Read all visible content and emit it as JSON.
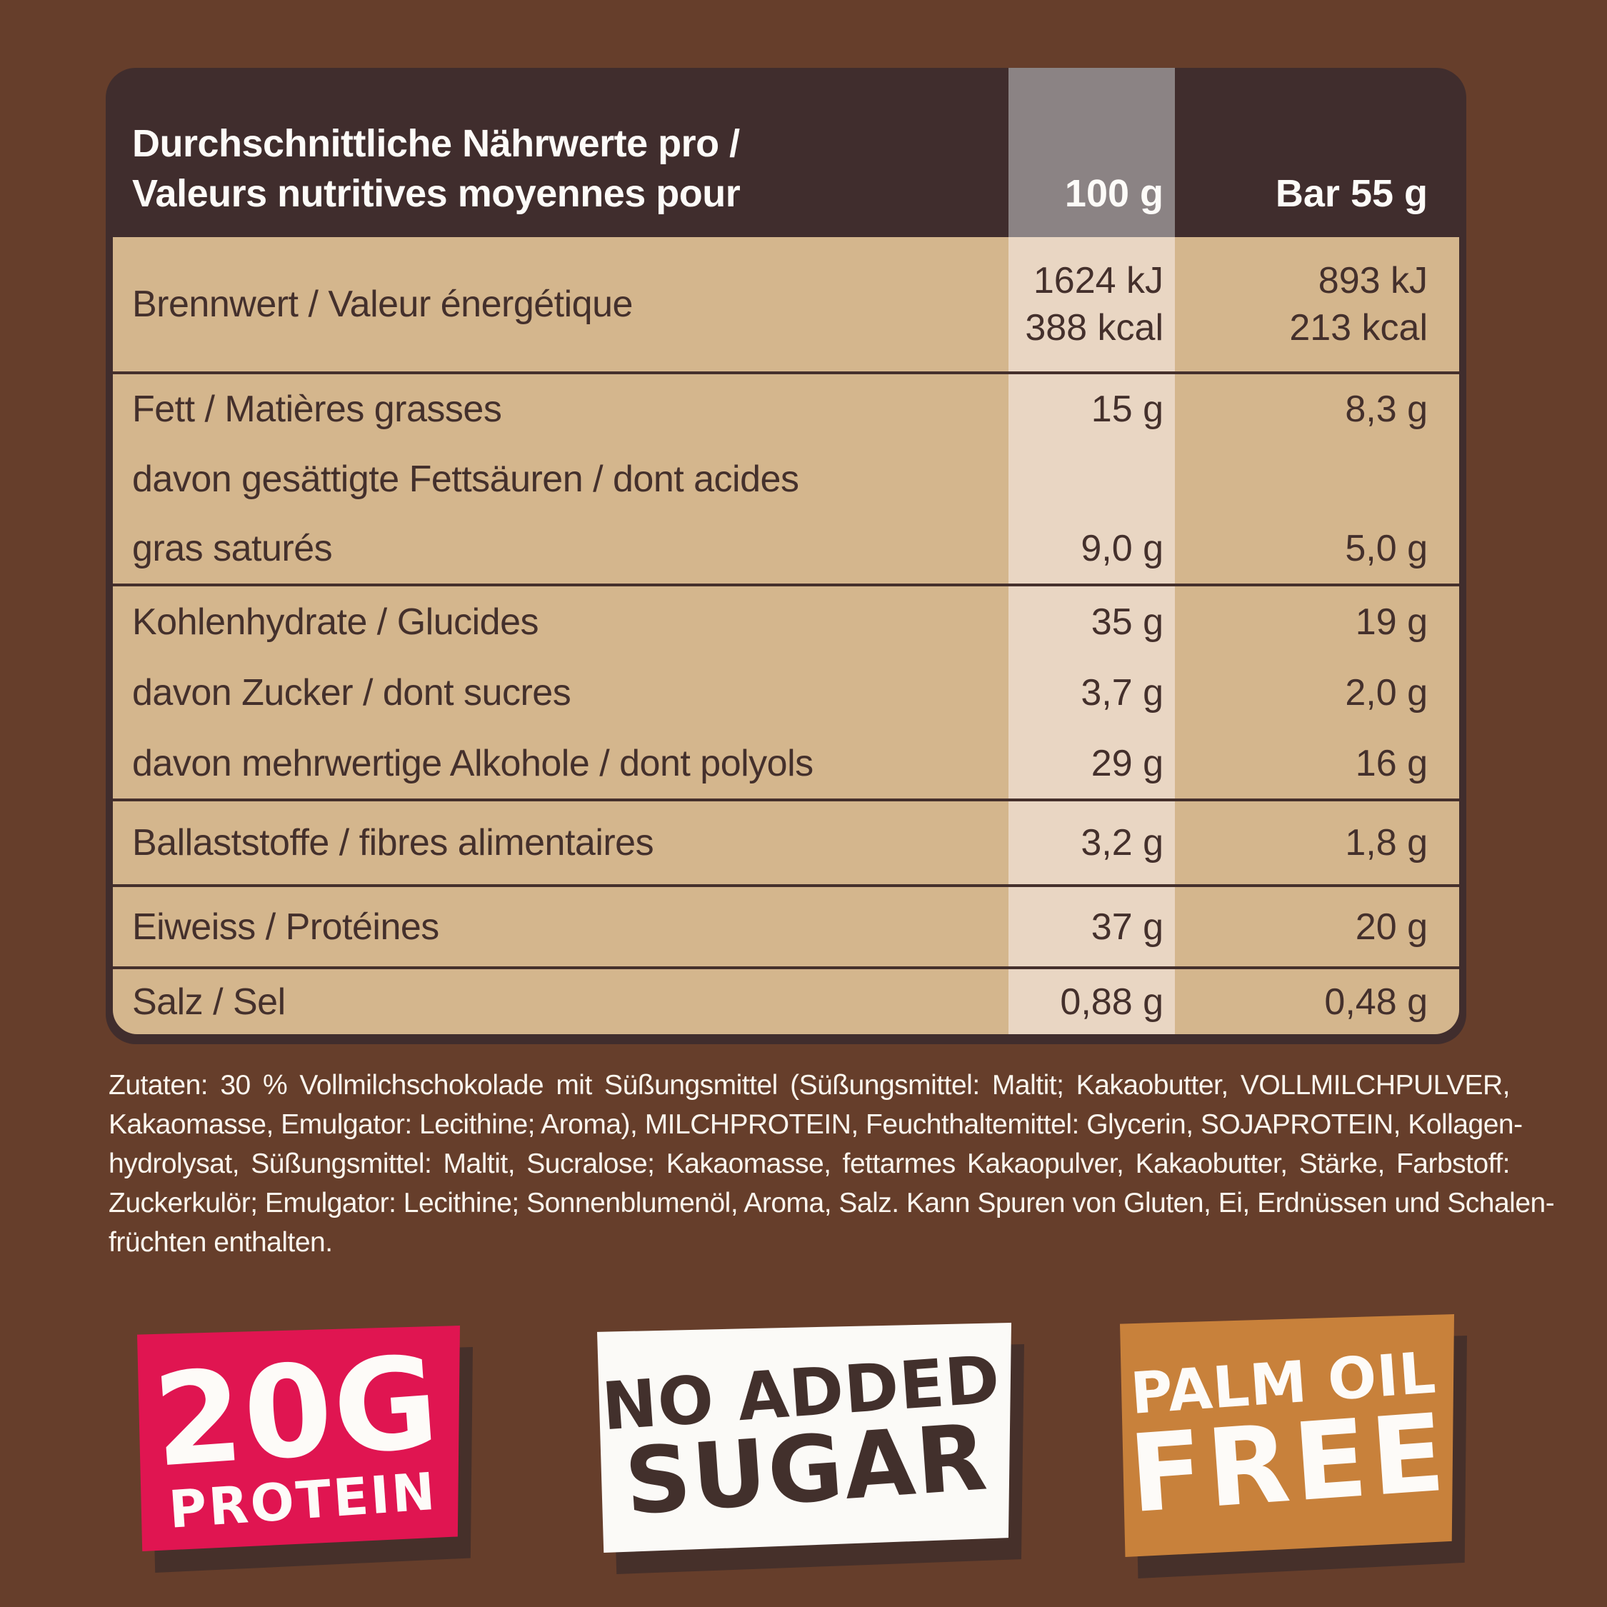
{
  "colors": {
    "background": "#663e2b",
    "panel_frame": "#402d2d",
    "row_tan": "#d4b68d",
    "col_100g_highlight": "#e9d6c3",
    "col_100g_header_gray": "#8b8384",
    "table_text": "#44302c",
    "white_text": "#fdfbf8",
    "badge_protein_bg": "#e01551",
    "badge_sugar_bg": "#fbfaf7",
    "badge_palm_bg": "#c8813b",
    "badge_shadow": "#46302a"
  },
  "table": {
    "header": {
      "title_de": "Durchschnittliche Nährwerte pro /",
      "title_fr": "Valeurs nutritives moyennes pour",
      "col_100g": "100 g",
      "col_bar": "Bar 55 g"
    },
    "rows": {
      "energy": {
        "label": "Brennwert / Valeur énergétique",
        "v100_kj": "1624 kJ",
        "v100_kcal": "388 kcal",
        "vbar_kj": "893 kJ",
        "vbar_kcal": "213 kcal"
      },
      "fat": {
        "l1": "Fett / Matières grasses",
        "v1_100": "15 g",
        "v1_bar": "8,3 g",
        "l2": "davon gesättigte Fettsäuren / dont acides",
        "l3": "gras saturés",
        "v3_100": "9,0 g",
        "v3_bar": "5,0 g"
      },
      "carbs": {
        "l1": "Kohlenhydrate / Glucides",
        "v1_100": "35 g",
        "v1_bar": "19 g",
        "l2": "davon Zucker / dont sucres",
        "v2_100": "3,7 g",
        "v2_bar": "2,0 g",
        "l3": "davon mehrwertige Alkohole / dont polyols",
        "v3_100": "29 g",
        "v3_bar": "16 g"
      },
      "fibre": {
        "label": "Ballaststoffe / fibres alimentaires",
        "v100": "3,2 g",
        "vbar": "1,8 g"
      },
      "protein": {
        "label": "Eiweiss / Protéines",
        "v100": "37 g",
        "vbar": "20 g"
      },
      "salt": {
        "label": "Salz / Sel",
        "v100": "0,88 g",
        "vbar": "0,48 g"
      }
    }
  },
  "ingredients": {
    "line1": "Zutaten: 30 % Vollmilchschokolade mit Süßungsmittel (Süßungsmittel: Maltit; Kakaobutter, VOLLMILCHPULVER,",
    "line2": "Kakaomasse, Emulgator: Lecithine; Aroma), MILCHPROTEIN, Feuchthaltemittel: Glycerin, SOJAPROTEIN, Kollagen-",
    "line3": "hydrolysat, Süßungsmittel: Maltit, Sucralose; Kakaomasse, fettarmes Kakaopulver, Kakaobutter, Stärke, Farbstoff:",
    "line4": "Zuckerkulör; Emulgator: Lecithine; Sonnenblumenöl, Aroma, Salz. Kann Spuren von Gluten, Ei, Erdnüssen und Schalen-",
    "line5": "früchten enthalten."
  },
  "badges": {
    "protein": {
      "line1": "20G",
      "line2": "PROTEIN"
    },
    "sugar": {
      "line1": "NO ADDED",
      "line2": "SUGAR"
    },
    "palm": {
      "line1": "PALM OIL",
      "line2": "FREE"
    }
  }
}
